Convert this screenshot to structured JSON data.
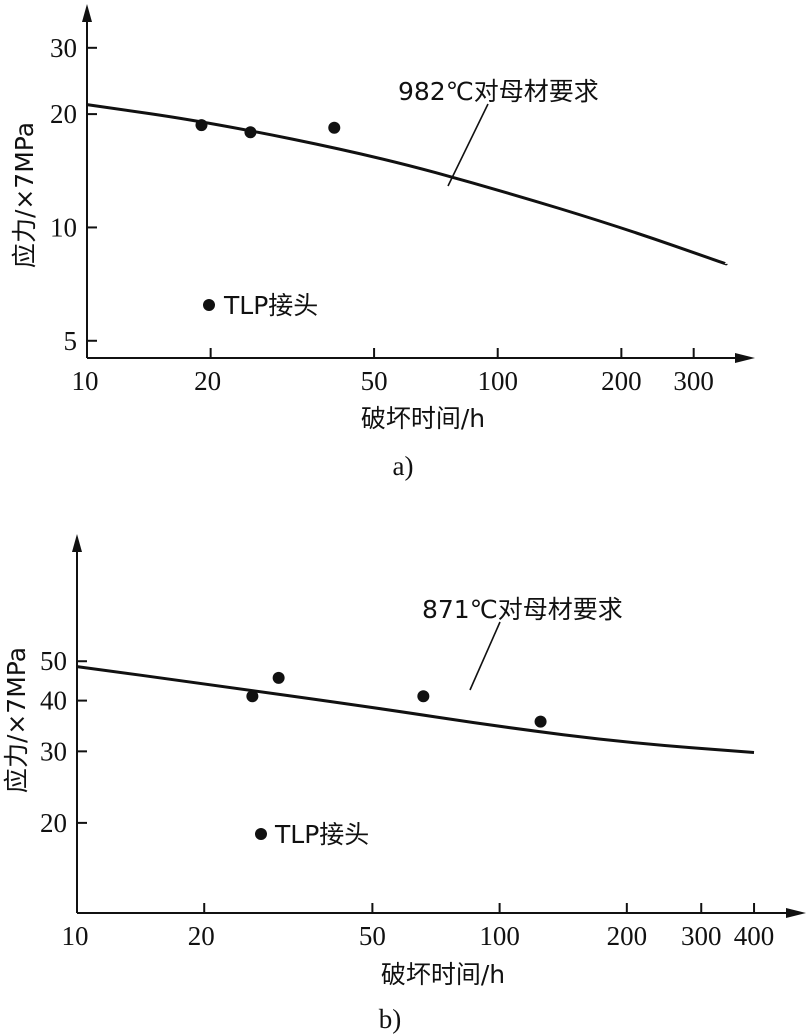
{
  "chart_data": [
    {
      "type": "scatter",
      "caption": "a)",
      "xlabel": "破坏时间/h",
      "ylabel": "应力/×7MPa",
      "x_scale": "log",
      "y_scale": "log",
      "xlim": [
        10,
        400
      ],
      "ylim": [
        4.5,
        36
      ],
      "x_ticks": [
        10,
        20,
        50,
        100,
        200,
        300
      ],
      "y_ticks": [
        5,
        10,
        20,
        30
      ],
      "reference_curve": {
        "label": "982℃对母材要求",
        "x": [
          10,
          20,
          50,
          100,
          200,
          360
        ],
        "y": [
          21.2,
          19.0,
          15.5,
          12.6,
          10.0,
          8.0
        ]
      },
      "series": [
        {
          "name": "TLP接头",
          "x": [
            19,
            25,
            40
          ],
          "y": [
            18.7,
            17.9,
            18.4
          ]
        }
      ]
    },
    {
      "type": "scatter",
      "caption": "b)",
      "xlabel": "破坏时间/h",
      "ylabel": "应力/×7MPa",
      "x_scale": "log",
      "y_scale": "log",
      "xlim": [
        10,
        500
      ],
      "ylim": [
        12,
        95
      ],
      "x_ticks": [
        10,
        20,
        50,
        100,
        200,
        300,
        400
      ],
      "y_ticks": [
        20,
        30,
        40,
        50
      ],
      "reference_curve": {
        "label": "871℃对母材要求",
        "x": [
          10,
          20,
          50,
          100,
          200,
          400
        ],
        "y": [
          48.5,
          44.0,
          38.5,
          34.5,
          31.5,
          29.8
        ]
      },
      "series": [
        {
          "name": "TLP接头",
          "x": [
            26,
            30,
            66,
            125
          ],
          "y": [
            41,
            45.5,
            41,
            35.5
          ]
        }
      ]
    }
  ]
}
